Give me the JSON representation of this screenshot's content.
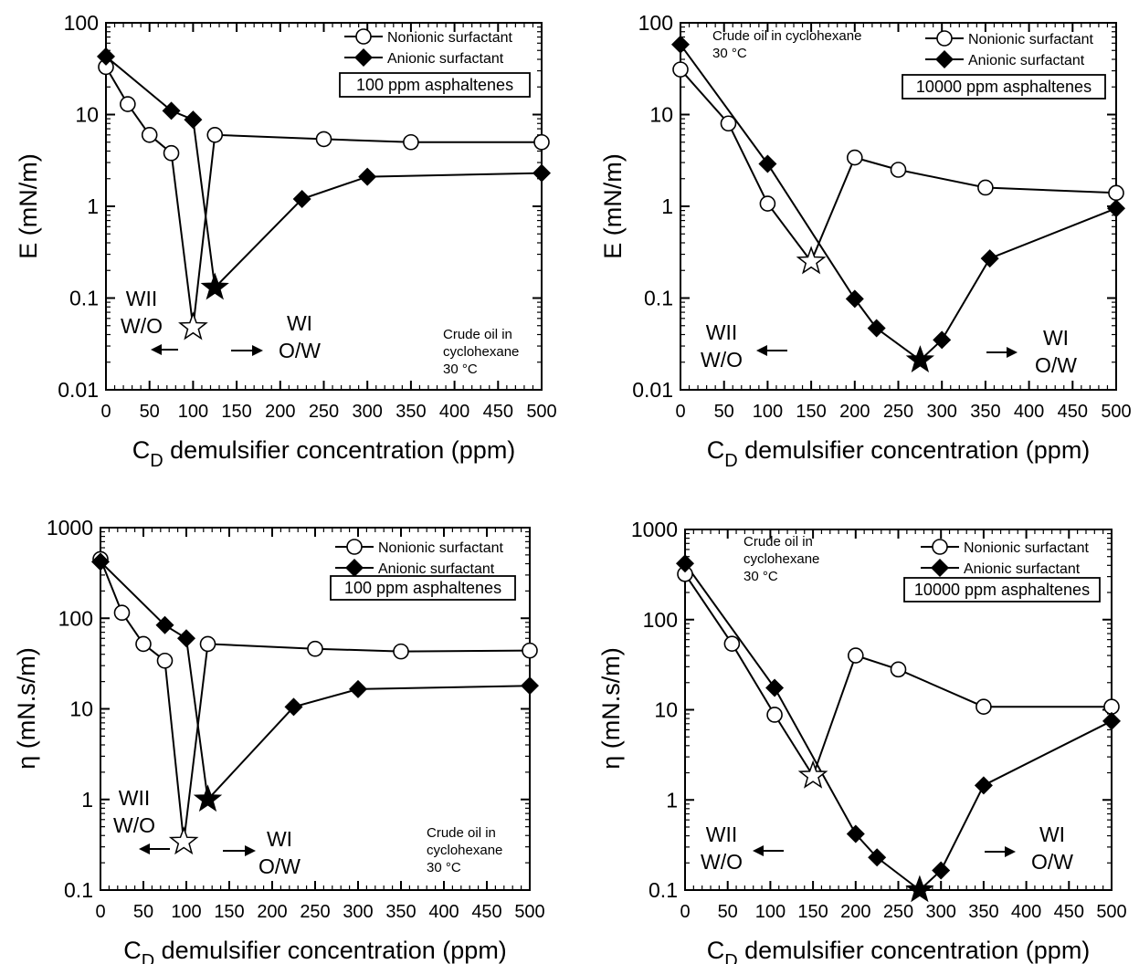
{
  "chart_data": [
    {
      "type": "line",
      "panel": "top-left",
      "xlabel": "C",
      "xlabel_sub": "D",
      "xlabel_rest": " demulsifier concentration (ppm)",
      "ylabel": "E (mN/m)",
      "yscale": "log",
      "xlim": [
        0,
        500
      ],
      "ylim": [
        0.01,
        100
      ],
      "xticks": [
        "0",
        "50",
        "100",
        "150",
        "200",
        "250",
        "300",
        "350",
        "400",
        "450",
        "500"
      ],
      "yticks": [
        "0.01",
        "0.1",
        "1",
        "10",
        "100"
      ],
      "legend": [
        "Nonionic surfactant",
        "Anionic surfactant"
      ],
      "legend_box": "100 ppm asphaltenes",
      "note": [
        "Crude oil in",
        "cyclohexane",
        "30 °C"
      ],
      "region_left": [
        "WII",
        "W/O"
      ],
      "region_right": [
        "WI",
        "O/W"
      ],
      "series": [
        {
          "name": "Nonionic surfactant",
          "marker": "circle",
          "x": [
            0,
            25,
            50,
            75,
            100,
            125,
            250,
            350,
            500
          ],
          "y": [
            33,
            13,
            6,
            3.8,
            0.048,
            6,
            5.4,
            5,
            5
          ],
          "star_index": 4
        },
        {
          "name": "Anionic surfactant",
          "marker": "diamond",
          "x": [
            0,
            75,
            100,
            125,
            225,
            300,
            500
          ],
          "y": [
            43,
            11,
            8.8,
            0.13,
            1.2,
            2.1,
            2.3
          ],
          "star_index": 3
        }
      ]
    },
    {
      "type": "line",
      "panel": "top-right",
      "xlabel": "C",
      "xlabel_sub": "D",
      "xlabel_rest": " demulsifier concentration (ppm)",
      "ylabel": "E (mN/m)",
      "yscale": "log",
      "xlim": [
        0,
        500
      ],
      "ylim": [
        0.01,
        100
      ],
      "xticks": [
        "0",
        "50",
        "100",
        "150",
        "200",
        "250",
        "300",
        "350",
        "400",
        "450",
        "500"
      ],
      "yticks": [
        "0.01",
        "0.1",
        "1",
        "10",
        "100"
      ],
      "legend": [
        "Nonionic surfactant",
        "Anionic surfactant"
      ],
      "legend_box": "10000 ppm asphaltenes",
      "note": [
        "Crude oil in cyclohexane",
        "30 °C"
      ],
      "region_left": [
        "WII",
        "W/O"
      ],
      "region_right": [
        "WI",
        "O/W"
      ],
      "series": [
        {
          "name": "Nonionic surfactant",
          "marker": "circle",
          "x": [
            0,
            55,
            100,
            150,
            200,
            250,
            350,
            500
          ],
          "y": [
            31,
            8,
            1.07,
            0.25,
            3.4,
            2.5,
            1.6,
            1.4
          ],
          "star_index": 3
        },
        {
          "name": "Anionic surfactant",
          "marker": "diamond",
          "x": [
            0,
            100,
            200,
            225,
            275,
            300,
            355,
            500
          ],
          "y": [
            58,
            2.9,
            0.098,
            0.047,
            0.021,
            0.035,
            0.27,
            0.95
          ],
          "star_index": 4
        }
      ]
    },
    {
      "type": "line",
      "panel": "bottom-left",
      "xlabel": "C",
      "xlabel_sub": "D",
      "xlabel_rest": " demulsifier concentration (ppm)",
      "ylabel": "η (mN.s/m)",
      "yscale": "log",
      "xlim": [
        0,
        500
      ],
      "ylim": [
        0.1,
        1000
      ],
      "xticks": [
        "0",
        "50",
        "100",
        "150",
        "200",
        "250",
        "300",
        "350",
        "400",
        "450",
        "500"
      ],
      "yticks": [
        "0.1",
        "1",
        "10",
        "100",
        "1000"
      ],
      "legend": [
        "Nonionic surfactant",
        "Anionic surfactant"
      ],
      "legend_box": "100 ppm asphaltenes",
      "note": [
        "Crude oil in",
        "cyclohexane",
        "30 °C"
      ],
      "region_left": [
        "WII",
        "W/O"
      ],
      "region_right": [
        "WI",
        "O/W"
      ],
      "series": [
        {
          "name": "Nonionic surfactant",
          "marker": "circle",
          "x": [
            0,
            25,
            50,
            75,
            97,
            125,
            250,
            350,
            500
          ],
          "y": [
            450,
            115,
            52,
            34,
            0.34,
            52,
            46,
            43,
            44
          ],
          "star_index": 4
        },
        {
          "name": "Anionic surfactant",
          "marker": "diamond",
          "x": [
            0,
            75,
            100,
            125,
            225,
            300,
            500
          ],
          "y": [
            420,
            84,
            60,
            1.0,
            10.5,
            16.5,
            18
          ],
          "star_index": 3
        }
      ]
    },
    {
      "type": "line",
      "panel": "bottom-right",
      "xlabel": "C",
      "xlabel_sub": "D",
      "xlabel_rest": " demulsifier concentration (ppm)",
      "ylabel": "η (mN.s/m)",
      "yscale": "log",
      "xlim": [
        0,
        500
      ],
      "ylim": [
        0.1,
        1000
      ],
      "xticks": [
        "0",
        "50",
        "100",
        "150",
        "200",
        "250",
        "300",
        "350",
        "400",
        "450",
        "500"
      ],
      "yticks": [
        "0.1",
        "1",
        "10",
        "100",
        "1000"
      ],
      "legend": [
        "Nonionic surfactant",
        "Anionic surfactant"
      ],
      "legend_box": "10000 ppm asphaltenes",
      "note": [
        "Crude oil in",
        "cyclohexane",
        "30 °C"
      ],
      "region_left": [
        "WII",
        "W/O"
      ],
      "region_right": [
        "WI",
        "O/W"
      ],
      "series": [
        {
          "name": "Nonionic surfactant",
          "marker": "circle",
          "x": [
            0,
            55,
            105,
            150,
            200,
            250,
            350,
            500
          ],
          "y": [
            320,
            54,
            8.8,
            1.85,
            40,
            28,
            10.8,
            10.8
          ],
          "star_index": 3
        },
        {
          "name": "Anionic surfactant",
          "marker": "diamond",
          "x": [
            0,
            105,
            200,
            225,
            275,
            300,
            350,
            500
          ],
          "y": [
            420,
            17.5,
            0.42,
            0.23,
            0.1,
            0.165,
            1.45,
            7.5
          ],
          "star_index": 4
        }
      ]
    }
  ]
}
